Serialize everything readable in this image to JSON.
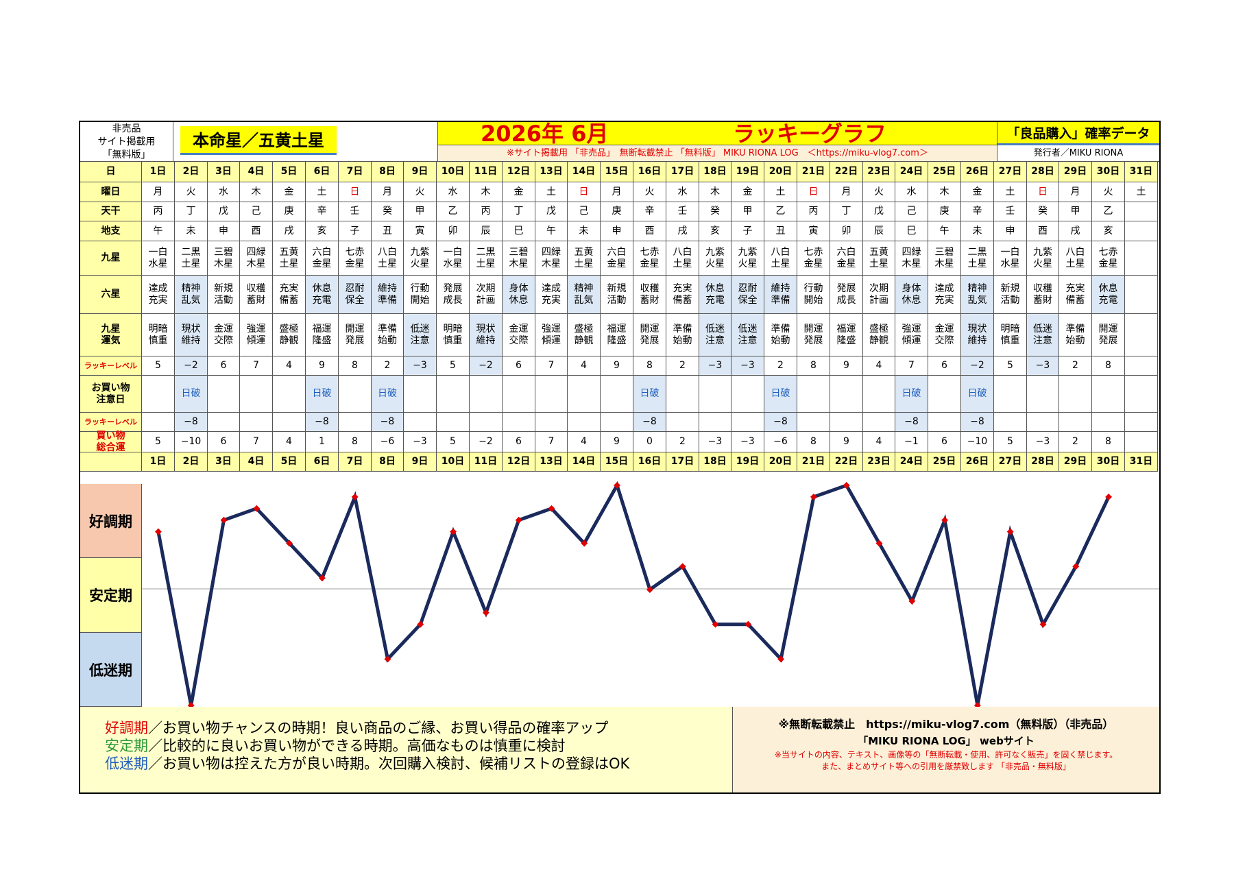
{
  "header": {
    "nonsale_label": "非売品\nサイト掲載用\n「無料版」",
    "star_title": "本命星／五黄土星",
    "month_title": "2026年 6月",
    "graph_title": "ラッキーグラフ",
    "data_title": "「良品購入」確率データ",
    "notice": "※サイト掲載用 「非売品」　無断転載禁止 「無料版」 MIKU RIONA LOG　＜https://miku-vlog7.com＞",
    "publisher": "発行者／MIKU RIONA"
  },
  "row_labels": {
    "day": "日",
    "weekday": "曜日",
    "tenkan": "天干",
    "chishi": "地支",
    "kyusei": "九星",
    "rokusei": "六星",
    "kyusei_unki": "九星\n運気",
    "lucky_level": "ラッキーレベル",
    "caution_day": "お買い物\n注意日",
    "lucky_level2": "ラッキーレベル",
    "total": "買い物\n総合運"
  },
  "days": [
    "1日",
    "2日",
    "3日",
    "4日",
    "5日",
    "6日",
    "7日",
    "8日",
    "9日",
    "10日",
    "11日",
    "12日",
    "13日",
    "14日",
    "15日",
    "16日",
    "17日",
    "18日",
    "19日",
    "20日",
    "21日",
    "22日",
    "23日",
    "24日",
    "25日",
    "26日",
    "27日",
    "28日",
    "29日",
    "30日",
    "31日"
  ],
  "weekdays": [
    "月",
    "火",
    "水",
    "木",
    "金",
    "土",
    "日",
    "月",
    "火",
    "水",
    "木",
    "金",
    "土",
    "日",
    "月",
    "火",
    "水",
    "木",
    "金",
    "土",
    "日",
    "月",
    "火",
    "水",
    "木",
    "金",
    "土",
    "日",
    "月",
    "火",
    "土"
  ],
  "tenkan": [
    "丙",
    "丁",
    "戊",
    "己",
    "庚",
    "辛",
    "壬",
    "癸",
    "甲",
    "乙",
    "丙",
    "丁",
    "戊",
    "己",
    "庚",
    "辛",
    "壬",
    "癸",
    "甲",
    "乙",
    "丙",
    "丁",
    "戊",
    "己",
    "庚",
    "辛",
    "壬",
    "癸",
    "甲",
    "乙",
    ""
  ],
  "chishi": [
    "午",
    "未",
    "申",
    "酉",
    "戌",
    "亥",
    "子",
    "丑",
    "寅",
    "卯",
    "辰",
    "巳",
    "午",
    "未",
    "申",
    "酉",
    "戌",
    "亥",
    "子",
    "丑",
    "寅",
    "卯",
    "辰",
    "巳",
    "午",
    "未",
    "申",
    "酉",
    "戌",
    "亥",
    ""
  ],
  "kyusei": [
    "一白\n水星",
    "二黒\n土星",
    "三碧\n木星",
    "四緑\n木星",
    "五黄\n土星",
    "六白\n金星",
    "七赤\n金星",
    "八白\n土星",
    "九紫\n火星",
    "一白\n水星",
    "二黒\n土星",
    "三碧\n木星",
    "四緑\n木星",
    "五黄\n土星",
    "六白\n金星",
    "七赤\n金星",
    "八白\n土星",
    "九紫\n火星",
    "九紫\n火星",
    "八白\n土星",
    "七赤\n金星",
    "六白\n金星",
    "五黄\n土星",
    "四緑\n木星",
    "三碧\n木星",
    "二黒\n土星",
    "一白\n水星",
    "九紫\n火星",
    "八白\n土星",
    "七赤\n金星",
    ""
  ],
  "rokusei": [
    "達成\n充実",
    "精神\n乱気",
    "新規\n活動",
    "収穫\n蓄財",
    "充実\n備蓄",
    "休息\n充電",
    "忍耐\n保全",
    "維持\n準備",
    "行動\n開始",
    "発展\n成長",
    "次期\n計画",
    "身体\n休息",
    "達成\n充実",
    "精神\n乱気",
    "新規\n活動",
    "収穫\n蓄財",
    "充実\n備蓄",
    "休息\n充電",
    "忍耐\n保全",
    "維持\n準備",
    "行動\n開始",
    "発展\n成長",
    "次期\n計画",
    "身体\n休息",
    "達成\n充実",
    "精神\n乱気",
    "新規\n活動",
    "収穫\n蓄財",
    "充実\n備蓄",
    "休息\n充電",
    ""
  ],
  "unki": [
    "明暗\n慎重",
    "現状\n維持",
    "金運\n交際",
    "強運\n傾運",
    "盛極\n静観",
    "福運\n隆盛",
    "開運\n発展",
    "準備\n始動",
    "低迷\n注意",
    "明暗\n慎重",
    "現状\n維持",
    "金運\n交際",
    "強運\n傾運",
    "盛極\n静観",
    "福運\n隆盛",
    "開運\n発展",
    "準備\n始動",
    "低迷\n注意",
    "低迷\n注意",
    "準備\n始動",
    "開運\n発展",
    "福運\n隆盛",
    "盛極\n静観",
    "強運\n傾運",
    "金運\n交際",
    "現状\n維持",
    "明暗\n慎重",
    "低迷\n注意",
    "準備\n始動",
    "開運\n発展",
    ""
  ],
  "lucky_level": [
    "5",
    "−2",
    "6",
    "7",
    "4",
    "9",
    "8",
    "2",
    "−3",
    "5",
    "−2",
    "6",
    "7",
    "4",
    "9",
    "8",
    "2",
    "−3",
    "−3",
    "2",
    "8",
    "9",
    "4",
    "7",
    "6",
    "−2",
    "5",
    "−3",
    "2",
    "8",
    ""
  ],
  "caution": [
    "",
    "日破",
    "",
    "",
    "",
    "日破",
    "",
    "日破",
    "",
    "",
    "",
    "",
    "",
    "",
    "",
    "日破",
    "",
    "",
    "",
    "日破",
    "",
    "",
    "",
    "日破",
    "",
    "日破",
    "",
    "",
    "",
    "",
    ""
  ],
  "lucky_level2": [
    "",
    "−8",
    "",
    "",
    "",
    "−8",
    "",
    "−8",
    "",
    "",
    "",
    "",
    "",
    "",
    "",
    "−8",
    "",
    "",
    "",
    "−8",
    "",
    "",
    "",
    "−8",
    "",
    "−8",
    "",
    "",
    "",
    "",
    ""
  ],
  "total": [
    "5",
    "−10",
    "6",
    "7",
    "4",
    "1",
    "8",
    "−6",
    "−3",
    "5",
    "−2",
    "6",
    "7",
    "4",
    "9",
    "0",
    "2",
    "−3",
    "−3",
    "−6",
    "8",
    "9",
    "4",
    "−1",
    "6",
    "−10",
    "5",
    "−3",
    "2",
    "8",
    ""
  ],
  "zones": {
    "good": "好調期",
    "stable": "安定期",
    "low": "低迷期"
  },
  "chart_data": {
    "type": "line",
    "title": "ラッキーグラフ",
    "x": [
      1,
      2,
      3,
      4,
      5,
      6,
      7,
      8,
      9,
      10,
      11,
      12,
      13,
      14,
      15,
      16,
      17,
      18,
      19,
      20,
      21,
      22,
      23,
      24,
      25,
      26,
      27,
      28,
      29,
      30
    ],
    "series": [
      {
        "values": [
          5,
          -10,
          6,
          7,
          4,
          1,
          8,
          -6,
          -3,
          5,
          -2,
          6,
          7,
          4,
          9,
          0,
          2,
          -3,
          -3,
          -6,
          8,
          9,
          4,
          -1,
          6,
          -10,
          5,
          -3,
          2,
          8
        ]
      }
    ],
    "ylim": [
      -10,
      9
    ],
    "line_color": "#1b2a5c",
    "marker_color": "#e00000"
  },
  "footer": {
    "good_term": "好調期",
    "good_text": "／お買い物チャンスの時期！良い商品のご縁、お買い得品の確率アップ",
    "stable_term": "安定期",
    "stable_text": "／比較的に良いお買い物ができる時期。高価なものは慎重に検討",
    "low_term": "低迷期",
    "low_text": "／お買い物は控えた方が良い時期。次回購入検討、候補リストの登録はOK",
    "right_line1": "※無断転載禁止　https://miku-vlog7.com（無料版）（非売品）",
    "right_line2": "「MIKU RIONA LOG」 webサイト",
    "right_line3": "※当サイトの内容、テキスト、画像等の「無断転載・使用、許可なく販売」を固く禁じます。",
    "right_line4": "また、まとめサイト等への引用を厳禁致します 「非売品・無料版」"
  },
  "colors": {
    "yellow": "#ffffa8",
    "title_yellow": "#ffff00",
    "highlight": "#dce8f5",
    "good_zone": "#f7c8ad",
    "stable_zone": "#ffffa8",
    "low_zone": "#c5d9ef",
    "footer_left": "#ffffcc",
    "footer_right": "#fdf0d8"
  }
}
